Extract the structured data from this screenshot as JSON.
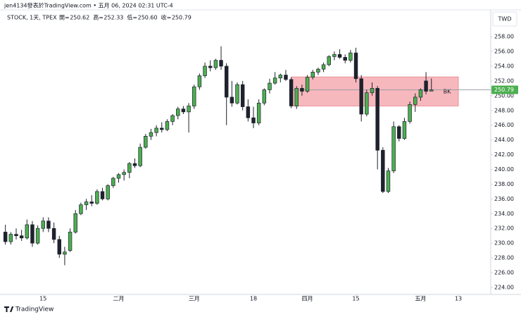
{
  "header": {
    "publisher": "jen4134發表於TradingView.com • 五月 06, 2024 02:31 UTC-4",
    "brand": "TradingView"
  },
  "chart_data": {
    "type": "candlestick",
    "symbol": "STOCK, 1天, TPEX",
    "ohlc_legend": [
      {
        "label": "開=",
        "text": "250.62"
      },
      {
        "label": "高=",
        "text": "252.33"
      },
      {
        "label": "低=",
        "text": "250.60"
      },
      {
        "label": "收=",
        "text": "250.79"
      }
    ],
    "currency": "TWD",
    "up_color": "#4caf50",
    "down_color": "#1e222d",
    "grid": false,
    "open": [
      231.5,
      230.2,
      231.2,
      231,
      230.7,
      232.5,
      230,
      232,
      233,
      232,
      230.5,
      228.5,
      229,
      231.5,
      234,
      235.2,
      235.6,
      235.4,
      237,
      236,
      237.8,
      238.8,
      239.3,
      239.6,
      240.8,
      240.5,
      243,
      244.5,
      245,
      245.6,
      245.4,
      246.5,
      247.3,
      248.2,
      247.8,
      248.6,
      251.2,
      252.7,
      254,
      253.8,
      254.8,
      254,
      249.8,
      249,
      251.5,
      248.5,
      247,
      246.3,
      249,
      250.8,
      251.7,
      252.4,
      252.8,
      252.2,
      248.6,
      251,
      250.6,
      252.5,
      253.2,
      253.6,
      254.2,
      255.3,
      255.6,
      255.2,
      254.8,
      255.8,
      252.3,
      247.5,
      250.4,
      251,
      242.6,
      237,
      239.8,
      245.8,
      244.2,
      246.5,
      248.8,
      249.8,
      252,
      250.62
    ],
    "high": [
      232.5,
      231.5,
      232,
      231.8,
      233.2,
      233,
      232.4,
      233.5,
      233.5,
      232.8,
      231,
      229.5,
      232,
      234.5,
      235.5,
      236,
      236.5,
      237.3,
      237.5,
      238,
      239,
      239.5,
      240,
      241,
      241.5,
      243.5,
      244.8,
      245.5,
      246,
      246.4,
      246.8,
      247.5,
      248.5,
      248.6,
      249,
      251.5,
      253,
      254.5,
      254.8,
      255,
      256.7,
      254.4,
      252,
      251.8,
      252,
      249.5,
      248.5,
      249.5,
      251,
      252.3,
      253.2,
      253,
      253.5,
      252.5,
      251.3,
      251.5,
      252.8,
      253.5,
      253.8,
      254.5,
      255.5,
      256,
      256.3,
      255.6,
      256.2,
      256.5,
      252.8,
      250.8,
      251.8,
      251.3,
      243,
      240.2,
      246.5,
      246,
      247,
      249.2,
      250.3,
      251,
      253.2,
      252.33
    ],
    "low": [
      229.8,
      229.8,
      230.5,
      230.3,
      230.5,
      229.5,
      229.8,
      231.5,
      231.5,
      230,
      228,
      227,
      228.8,
      231.3,
      233.8,
      234.5,
      235,
      235.2,
      235.8,
      235.8,
      237.5,
      238.2,
      238.5,
      238.8,
      240.2,
      240.3,
      242.8,
      244,
      244.5,
      245,
      245.2,
      246,
      246.8,
      247.5,
      245,
      248.2,
      250.8,
      252.4,
      253.3,
      253.5,
      253.5,
      246,
      248.5,
      248.8,
      248,
      246.5,
      245.6,
      246,
      248.7,
      250.3,
      251.5,
      251.8,
      252,
      248.3,
      248.2,
      250,
      250.4,
      252.2,
      252.8,
      253.2,
      254,
      254.8,
      255,
      254.4,
      254.5,
      251.8,
      246.5,
      247.2,
      250,
      240,
      236.8,
      236.8,
      239.5,
      243.8,
      244,
      246.2,
      247.8,
      249.3,
      250.2,
      250.6
    ],
    "close": [
      230.2,
      231.2,
      231,
      230.7,
      232.5,
      230,
      232,
      233,
      232,
      230.5,
      228.5,
      228.8,
      231.5,
      234,
      235.2,
      235.6,
      235.4,
      237,
      236,
      237.8,
      238.8,
      239.3,
      239.6,
      240.8,
      240.5,
      243,
      244.5,
      245,
      245.6,
      245.4,
      246.5,
      247.3,
      248.2,
      247.8,
      248.6,
      251.2,
      252.7,
      254,
      253.8,
      254.8,
      254,
      249.8,
      249,
      251.5,
      248.5,
      247,
      246.3,
      249,
      250.8,
      251.7,
      252.4,
      252.8,
      252.2,
      248.6,
      251,
      250.6,
      252.5,
      253.2,
      253.6,
      254.2,
      255.3,
      255.6,
      255.2,
      254.8,
      255.8,
      252.3,
      247.5,
      250.4,
      251,
      242.6,
      237,
      239.8,
      245.8,
      244.2,
      246.5,
      248.8,
      249.8,
      250.8,
      250.6,
      250.79
    ],
    "xlim": [
      -1,
      90
    ],
    "xticks": [
      {
        "value": 7,
        "label": "15"
      },
      {
        "value": 21,
        "label": "二月"
      },
      {
        "value": 35,
        "label": "三月"
      },
      {
        "value": 46,
        "label": "18"
      },
      {
        "value": 56,
        "label": "四月"
      },
      {
        "value": 65,
        "label": "15"
      },
      {
        "value": 77,
        "label": "五月"
      },
      {
        "value": 84,
        "label": "13"
      }
    ],
    "ylim": [
      223.04,
      261.64
    ],
    "yticks": [
      {
        "value": 224,
        "label": "224.00"
      },
      {
        "value": 226,
        "label": "226.00"
      },
      {
        "value": 228,
        "label": "228.00"
      },
      {
        "value": 230,
        "label": "230.00"
      },
      {
        "value": 232,
        "label": "232.00"
      },
      {
        "value": 234,
        "label": "234.00"
      },
      {
        "value": 236,
        "label": "236.00"
      },
      {
        "value": 238,
        "label": "238.00"
      },
      {
        "value": 240,
        "label": "240.00"
      },
      {
        "value": 242,
        "label": "242.00"
      },
      {
        "value": 244,
        "label": "244.00"
      },
      {
        "value": 246,
        "label": "246.00"
      },
      {
        "value": 248,
        "label": "248.00"
      },
      {
        "value": 250,
        "label": "250.00"
      },
      {
        "value": 252,
        "label": "252.00"
      },
      {
        "value": 254,
        "label": "254.00"
      },
      {
        "value": 256,
        "label": "256.00"
      },
      {
        "value": 258,
        "label": "258.00"
      }
    ],
    "zone": {
      "label": "BK",
      "start": 53,
      "end": 84,
      "top": 252.55,
      "bottom": 248.6,
      "color": "#f4a6ad"
    },
    "last_price": {
      "value": 250.79,
      "label": "250.79"
    }
  }
}
